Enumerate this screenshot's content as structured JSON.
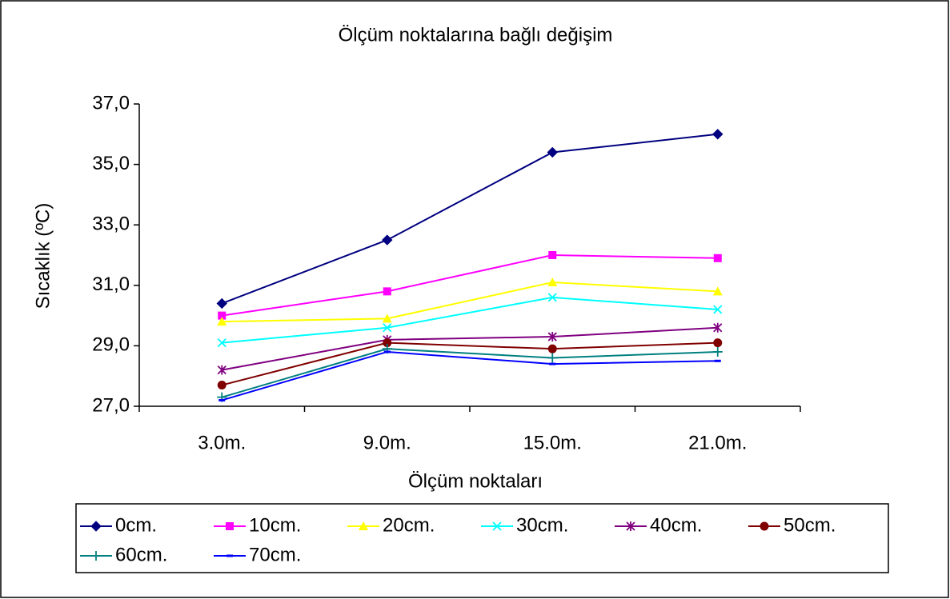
{
  "chart_data": {
    "type": "line",
    "title": "Ölçüm noktalarına bağlı değişim",
    "x_label": "Ölçüm noktaları",
    "y_label": "Sıcaklık (ºC)",
    "categories": [
      "3.0m.",
      "9.0m.",
      "15.0m.",
      "21.0m."
    ],
    "ylim": [
      27,
      37
    ],
    "yticks": [
      {
        "value": 27,
        "label": "27,0"
      },
      {
        "value": 29,
        "label": "29,0"
      },
      {
        "value": 31,
        "label": "31,0"
      },
      {
        "value": 33,
        "label": "33,0"
      },
      {
        "value": 35,
        "label": "35,0"
      },
      {
        "value": 37,
        "label": "37,0"
      }
    ],
    "grid": false,
    "legend": "bottom",
    "series": [
      {
        "name": "0cm.",
        "color": "#000080",
        "marker": "diamond",
        "values": [
          30.4,
          32.5,
          35.4,
          36.0
        ]
      },
      {
        "name": "10cm.",
        "color": "#ff00ff",
        "marker": "square",
        "values": [
          30.0,
          30.8,
          32.0,
          31.9
        ]
      },
      {
        "name": "20cm.",
        "color": "#ffff00",
        "marker": "triangle",
        "values": [
          29.8,
          29.9,
          31.1,
          30.8
        ]
      },
      {
        "name": "30cm.",
        "color": "#00ffff",
        "marker": "x",
        "values": [
          29.1,
          29.6,
          30.6,
          30.2
        ]
      },
      {
        "name": "40cm.",
        "color": "#800080",
        "marker": "star",
        "values": [
          28.2,
          29.2,
          29.3,
          29.6
        ]
      },
      {
        "name": "50cm.",
        "color": "#800000",
        "marker": "circle",
        "values": [
          27.7,
          29.1,
          28.9,
          29.1
        ]
      },
      {
        "name": "60cm.",
        "color": "#008080",
        "marker": "plus",
        "values": [
          27.3,
          28.9,
          28.6,
          28.8
        ]
      },
      {
        "name": "70cm.",
        "color": "#0000ff",
        "marker": "dash",
        "values": [
          27.2,
          28.8,
          28.4,
          28.5
        ]
      }
    ]
  }
}
